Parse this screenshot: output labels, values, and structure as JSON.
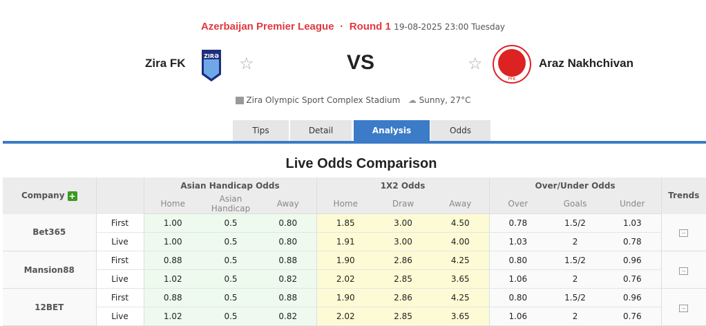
{
  "header": {
    "league": "Azerbaijan Premier League",
    "round": "Round 1",
    "datetime": "19-08-2025 23:00 Tuesday",
    "home": "Zira FK",
    "away": "Araz Nakhchivan",
    "vs": "VS",
    "venue": "Zira Olympic Sport Complex Stadium",
    "weather": "Sunny, 27°C",
    "home_crest_text": "ZIRƏ",
    "away_crest_text": "PFK"
  },
  "tabs": [
    {
      "label": "Tips"
    },
    {
      "label": "Detail"
    },
    {
      "label": "Analysis",
      "active": true
    },
    {
      "label": "Odds"
    }
  ],
  "title": "Live Odds Comparison",
  "table": {
    "company": "Company",
    "ah": "Asian Handicap Odds",
    "x12": "1X2 Odds",
    "ou": "Over/Under Odds",
    "trends": "Trends",
    "sub": [
      "Home",
      "Asian Handicap",
      "Away",
      "Home",
      "Draw",
      "Away",
      "Over",
      "Goals",
      "Under"
    ],
    "rows": [
      {
        "company": "Bet365",
        "first": [
          "1.00",
          "0.5",
          "0.80",
          "1.85",
          "3.00",
          "4.50",
          "0.78",
          "1.5/2",
          "1.03"
        ],
        "live": [
          "1.00",
          "0.5",
          "0.80",
          "1.91",
          "3.00",
          "4.00",
          "1.03",
          "2",
          "0.78"
        ]
      },
      {
        "company": "Mansion88",
        "first": [
          "0.88",
          "0.5",
          "0.88",
          "1.90",
          "2.86",
          "4.25",
          "0.80",
          "1.5/2",
          "0.96"
        ],
        "live": [
          "1.02",
          "0.5",
          "0.82",
          "2.02",
          "2.85",
          "3.65",
          "1.06",
          "2",
          "0.76"
        ]
      },
      {
        "company": "12BET",
        "first": [
          "0.88",
          "0.5",
          "0.88",
          "1.90",
          "2.86",
          "4.25",
          "0.80",
          "1.5/2",
          "0.96"
        ],
        "live": [
          "1.02",
          "0.5",
          "0.82",
          "2.02",
          "2.85",
          "3.65",
          "1.06",
          "2",
          "0.76"
        ]
      }
    ],
    "first": "First",
    "live": "Live"
  },
  "colors": {
    "accent": "#3b7bc7",
    "league": "#e0393e"
  }
}
